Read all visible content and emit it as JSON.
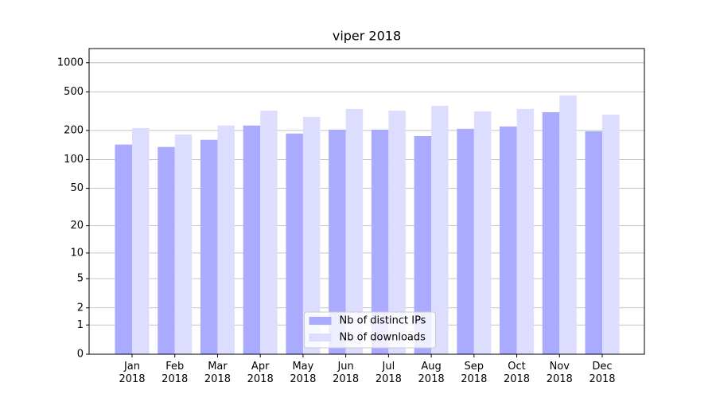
{
  "chart_data": {
    "type": "bar",
    "title": "viper 2018",
    "categories": [
      "Jan\n2018",
      "Feb\n2018",
      "Mar\n2018",
      "Apr\n2018",
      "May\n2018",
      "Jun\n2018",
      "Jul\n2018",
      "Aug\n2018",
      "Sep\n2018",
      "Oct\n2018",
      "Nov\n2018",
      "Dec\n2018"
    ],
    "series": [
      {
        "name": "Nb of distinct IPs",
        "color": "#aaaaff",
        "values": [
          143,
          135,
          160,
          225,
          186,
          204,
          204,
          175,
          208,
          220,
          309,
          196
        ]
      },
      {
        "name": "Nb of downloads",
        "color": "#ddddff",
        "values": [
          212,
          182,
          225,
          321,
          276,
          334,
          321,
          360,
          315,
          334,
          460,
          292
        ]
      }
    ],
    "y_scale": "log1p",
    "ylim": [
      0,
      1400
    ],
    "yticks": [
      0,
      1,
      2,
      5,
      10,
      20,
      50,
      100,
      200,
      500,
      1000
    ],
    "grid": true,
    "legend_position": "lower center"
  }
}
